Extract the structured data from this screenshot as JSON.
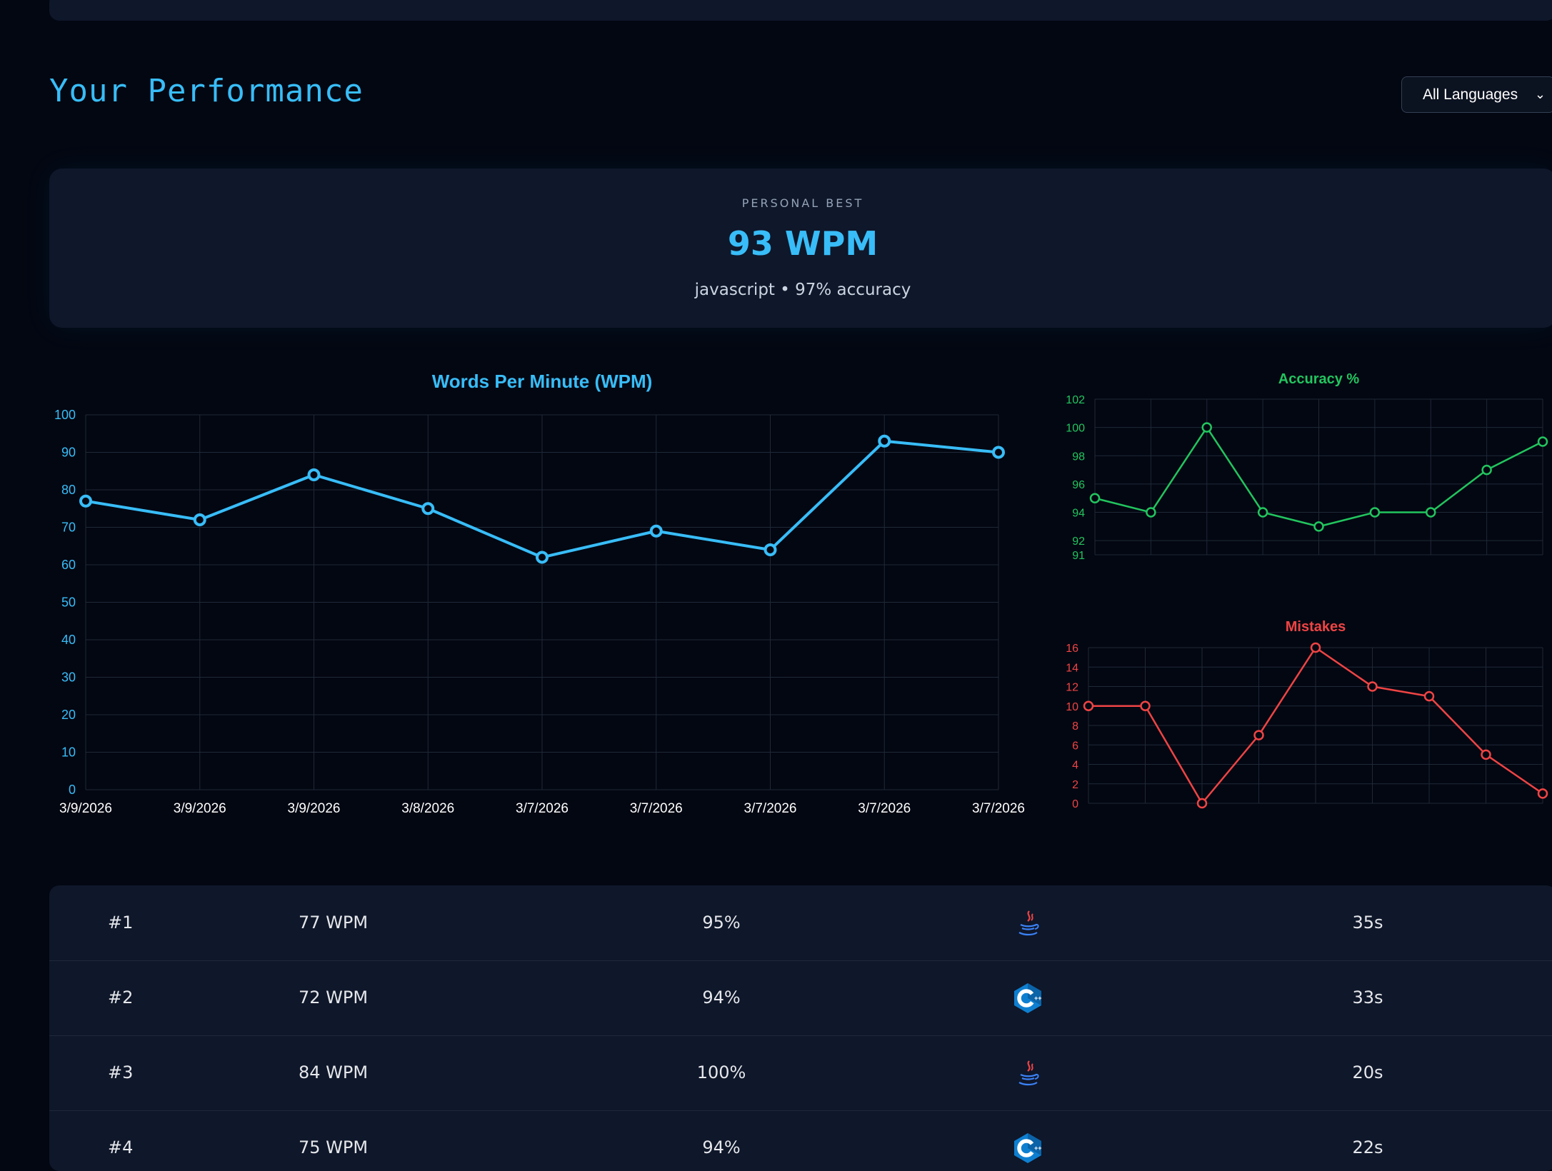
{
  "page": {
    "title": "Your Performance"
  },
  "language_filter": {
    "selected": "All Languages"
  },
  "personal_best": {
    "label": "PERSONAL BEST",
    "value": "93 WPM",
    "detail": "javascript • 97% accuracy"
  },
  "chart_data": [
    {
      "type": "line",
      "title": "Words Per Minute (WPM)",
      "categories": [
        "3/9/2026",
        "3/9/2026",
        "3/9/2026",
        "3/8/2026",
        "3/7/2026",
        "3/7/2026",
        "3/7/2026",
        "3/7/2026",
        "3/7/2026"
      ],
      "series": [
        {
          "name": "WPM",
          "values": [
            77,
            72,
            84,
            75,
            62,
            69,
            64,
            93,
            90
          ]
        }
      ],
      "yticks": [
        0,
        10,
        20,
        30,
        40,
        50,
        60,
        70,
        80,
        90,
        100
      ],
      "ylim": [
        0,
        100
      ],
      "color": "#38bdf8"
    },
    {
      "type": "line",
      "title": "Accuracy %",
      "series": [
        {
          "name": "Accuracy",
          "values": [
            95,
            94,
            100,
            94,
            93,
            94,
            94,
            97,
            99
          ]
        }
      ],
      "yticks": [
        91,
        92,
        94,
        96,
        98,
        100,
        102
      ],
      "ylim": [
        91,
        102
      ],
      "color": "#22c55e"
    },
    {
      "type": "line",
      "title": "Mistakes",
      "series": [
        {
          "name": "Mistakes",
          "values": [
            10,
            10,
            0,
            7,
            16,
            12,
            11,
            5,
            1
          ]
        }
      ],
      "yticks": [
        0,
        2,
        4,
        6,
        8,
        10,
        12,
        14,
        16
      ],
      "ylim": [
        0,
        16
      ],
      "color": "#ef4444"
    }
  ],
  "scores": [
    {
      "rank": "#1",
      "wpm": "77 WPM",
      "accuracy": "95%",
      "language": "java-icon",
      "time": "35s"
    },
    {
      "rank": "#2",
      "wpm": "72 WPM",
      "accuracy": "94%",
      "language": "cpp-icon",
      "time": "33s"
    },
    {
      "rank": "#3",
      "wpm": "84 WPM",
      "accuracy": "100%",
      "language": "java-icon",
      "time": "20s"
    },
    {
      "rank": "#4",
      "wpm": "75 WPM",
      "accuracy": "94%",
      "language": "cpp-icon",
      "time": "22s"
    }
  ]
}
